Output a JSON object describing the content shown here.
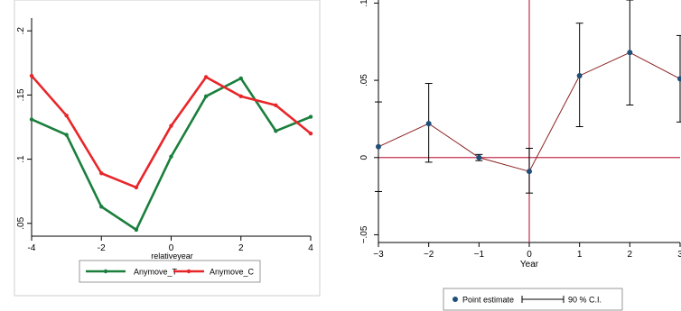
{
  "chart_data": [
    {
      "type": "line",
      "xlabel": "relativeyear",
      "ylabel": "",
      "xlim": [
        -4,
        4
      ],
      "ylim": [
        0.04,
        0.21
      ],
      "x_ticks": [
        -4,
        -2,
        0,
        2,
        4
      ],
      "x_tick_labels": [
        "-4",
        "-2",
        "0",
        "2",
        "4"
      ],
      "y_ticks": [
        0.05,
        0.1,
        0.15,
        0.2
      ],
      "y_tick_labels": [
        ".05",
        ".1",
        ".15",
        ".2"
      ],
      "x": [
        -4,
        -3,
        -2,
        -1,
        0,
        1,
        2,
        3,
        4
      ],
      "series": [
        {
          "name": "Anymove_T",
          "color": "#1a7f3c",
          "values": [
            0.131,
            0.119,
            0.063,
            0.045,
            0.102,
            0.149,
            0.163,
            0.122,
            0.133
          ]
        },
        {
          "name": "Anymove_C",
          "color": "#e8262a",
          "values": [
            0.165,
            0.134,
            0.089,
            0.078,
            0.126,
            0.164,
            0.149,
            0.142,
            0.12
          ]
        }
      ],
      "legend_position": "bottom",
      "grid": false
    },
    {
      "type": "line",
      "xlabel": "Year",
      "ylabel": "",
      "xlim": [
        -3,
        3
      ],
      "ylim": [
        -0.055,
        0.102
      ],
      "x_ticks": [
        -3,
        -2,
        -1,
        0,
        1,
        2,
        3
      ],
      "x_tick_labels": [
        "−3",
        "−2",
        "−1",
        "0",
        "1",
        "2",
        "3"
      ],
      "y_ticks": [
        -0.05,
        0,
        0.05,
        0.1
      ],
      "y_tick_labels": [
        "−.05",
        "0",
        ".05",
        ".1"
      ],
      "x": [
        -3,
        -2,
        -1,
        0,
        1,
        2,
        3
      ],
      "series": [
        {
          "name": "Point estimate",
          "color": "#1f4e79",
          "line_color": "#8b2020",
          "values": [
            0.007,
            0.022,
            0.0,
            -0.009,
            0.053,
            0.068,
            0.051
          ]
        },
        {
          "name": "90 % C.I.",
          "color": "#000000",
          "lower": [
            -0.022,
            -0.003,
            -0.002,
            -0.023,
            0.02,
            0.034,
            0.023
          ],
          "upper": [
            0.036,
            0.048,
            0.002,
            0.006,
            0.087,
            0.102,
            0.079
          ]
        }
      ],
      "reference_lines": {
        "x": 0,
        "y": 0,
        "color": "#c0304f"
      },
      "legend_position": "bottom",
      "grid": false
    }
  ]
}
